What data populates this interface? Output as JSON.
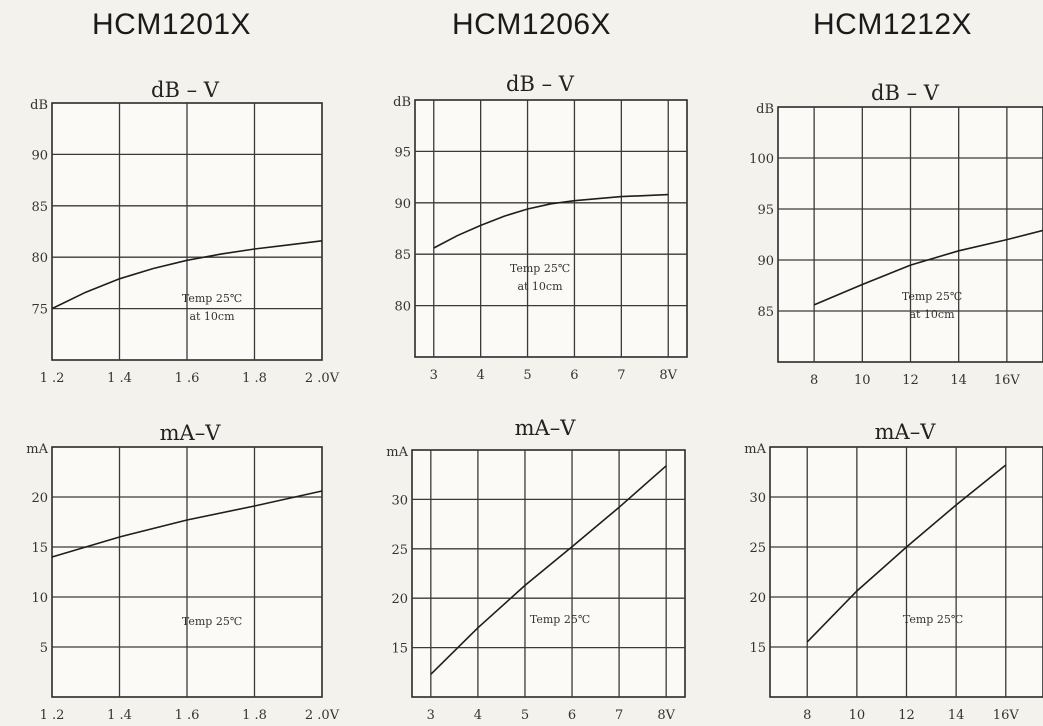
{
  "models": [
    "HCM1201X",
    "HCM1206X",
    "HCM1212X"
  ],
  "chart_data": [
    {
      "type": "line",
      "title": "dB – V",
      "ylabel": "dB",
      "xlim": [
        1.2,
        2.0
      ],
      "ylim": [
        70,
        95
      ],
      "xticks": [
        1.2,
        1.4,
        1.6,
        1.8,
        2.0
      ],
      "xtick_labels": [
        "1 .2",
        "1 .4",
        "1 .6",
        "1 .8",
        "2 .0V"
      ],
      "yticks": [
        75,
        80,
        85,
        90
      ],
      "ytick_labels": [
        "75",
        "80",
        "85",
        "90"
      ],
      "x": [
        1.2,
        1.3,
        1.4,
        1.5,
        1.6,
        1.7,
        1.8,
        1.9,
        2.0
      ],
      "y": [
        75,
        76.6,
        77.9,
        78.9,
        79.7,
        80.3,
        80.8,
        81.2,
        81.6
      ],
      "annotations": [
        "Temp 25℃",
        "at 10cm"
      ]
    },
    {
      "type": "line",
      "title": "dB – V",
      "ylabel": "dB",
      "xlim": [
        2.6,
        8.4
      ],
      "ylim": [
        75,
        100
      ],
      "xticks": [
        3,
        4,
        5,
        6,
        7,
        8
      ],
      "xtick_labels": [
        "3",
        "4",
        "5",
        "6",
        "7",
        "8V"
      ],
      "yticks": [
        80,
        85,
        90,
        95
      ],
      "ytick_labels": [
        "80",
        "85",
        "90",
        "95"
      ],
      "x": [
        3,
        3.5,
        4,
        4.5,
        5,
        5.5,
        6,
        7,
        8
      ],
      "y": [
        85.6,
        86.8,
        87.8,
        88.7,
        89.4,
        89.9,
        90.2,
        90.6,
        90.8
      ],
      "annotations": [
        "Temp 25℃",
        "at 10cm"
      ]
    },
    {
      "type": "line",
      "title": "dB – V",
      "ylabel": "dB",
      "xlim": [
        6.5,
        17.5
      ],
      "ylim": [
        80,
        105
      ],
      "xticks": [
        8,
        10,
        12,
        14,
        16
      ],
      "xtick_labels": [
        "8",
        "10",
        "12",
        "14",
        "16V"
      ],
      "yticks": [
        85,
        90,
        95,
        100
      ],
      "ytick_labels": [
        "85",
        "90",
        "95",
        "100"
      ],
      "x": [
        8,
        10,
        12,
        14,
        16,
        17.5
      ],
      "y": [
        85.6,
        87.6,
        89.5,
        90.9,
        92,
        92.9
      ],
      "annotations": [
        "Temp 25℃",
        "at 10cm"
      ]
    },
    {
      "type": "line",
      "title": "mA–V",
      "ylabel": "mA",
      "xlim": [
        1.2,
        2.0
      ],
      "ylim": [
        0,
        25
      ],
      "xticks": [
        1.2,
        1.4,
        1.6,
        1.8,
        2.0
      ],
      "xtick_labels": [
        "1 .2",
        "1 .4",
        "1 .6",
        "1 .8",
        "2 .0V"
      ],
      "yticks": [
        5,
        10,
        15,
        20
      ],
      "ytick_labels": [
        "5",
        "10",
        "15",
        "20"
      ],
      "x": [
        1.2,
        1.4,
        1.6,
        1.8,
        2.0
      ],
      "y": [
        14,
        16,
        17.7,
        19.1,
        20.6
      ],
      "annotations": [
        "Temp 25℃"
      ]
    },
    {
      "type": "line",
      "title": "mA–V",
      "ylabel": "mA",
      "xlim": [
        2.6,
        8.4
      ],
      "ylim": [
        10,
        35
      ],
      "xticks": [
        3,
        4,
        5,
        6,
        7,
        8
      ],
      "xtick_labels": [
        "3",
        "4",
        "5",
        "6",
        "7",
        "8V"
      ],
      "yticks": [
        15,
        20,
        25,
        30
      ],
      "ytick_labels": [
        "15",
        "20",
        "25",
        "30"
      ],
      "x": [
        3,
        4,
        5,
        6,
        7,
        8
      ],
      "y": [
        12.3,
        17,
        21.3,
        25.2,
        29.2,
        33.4
      ],
      "annotations": [
        "Temp 25℃"
      ]
    },
    {
      "type": "line",
      "title": "mA–V",
      "ylabel": "mA",
      "xlim": [
        6.5,
        17.5
      ],
      "ylim": [
        10,
        35
      ],
      "xticks": [
        8,
        10,
        12,
        14,
        16
      ],
      "xtick_labels": [
        "8",
        "10",
        "12",
        "14",
        "16V"
      ],
      "yticks": [
        15,
        20,
        25,
        30
      ],
      "ytick_labels": [
        "15",
        "20",
        "25",
        "30"
      ],
      "x": [
        8,
        10,
        12,
        14,
        16
      ],
      "y": [
        15.5,
        20.6,
        25,
        29.2,
        33.2
      ],
      "annotations": [
        "Temp 25℃"
      ]
    }
  ]
}
